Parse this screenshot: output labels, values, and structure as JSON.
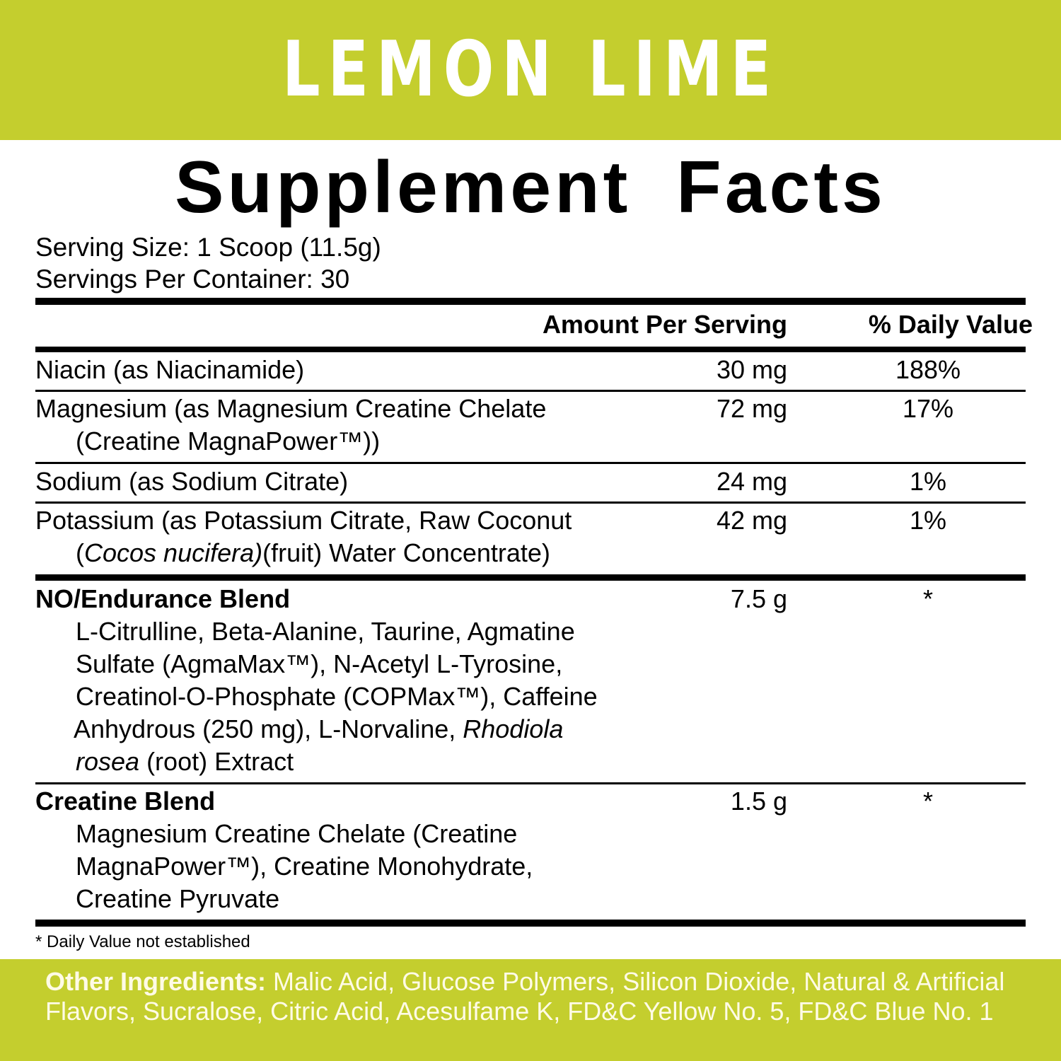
{
  "colors": {
    "brand_green": "#c4ce2e",
    "text": "#000000",
    "band_text": "#fffbe6"
  },
  "flavor": "LEMON LIME",
  "title": "Supplement Facts",
  "serving_size": "Serving Size: 1 Scoop (11.5g)",
  "servings_per_container": "Servings Per Container: 30",
  "columns": {
    "amount": "Amount Per Serving",
    "dv": "% Daily Value"
  },
  "rows": [
    {
      "name": "Niacin (as Niacinamide)",
      "amount": "30 mg",
      "dv": "188%"
    },
    {
      "name": "Magnesium (as Magnesium Creatine Chelate",
      "name2": "(Creatine MagnaPower™))",
      "amount": "72 mg",
      "dv": "17%"
    },
    {
      "name": "Sodium (as Sodium Citrate)",
      "amount": "24 mg",
      "dv": "1%"
    },
    {
      "name": "Potassium (as Potassium Citrate, Raw Coconut",
      "name2_a": "(",
      "name2_i": "Cocos nucifera)",
      "name2_b": "(fruit) Water Concentrate)",
      "amount": "42 mg",
      "dv": "1%"
    }
  ],
  "blends": [
    {
      "name": "NO/Endurance Blend",
      "amount": "7.5 g",
      "dv": "*",
      "lines": [
        "L-Citrulline, Beta-Alanine, Taurine, Agmatine",
        "Sulfate (AgmaMax™), N-Acetyl L-Tyrosine,",
        "Creatinol-O-Phosphate (COPMax™), Caffeine"
      ],
      "line4_a": "Anhydrous (250 mg), L-Norvaline, ",
      "line4_i": "Rhodiola",
      "line5_i": "rosea",
      "line5_b": " (root) Extract"
    },
    {
      "name": "Creatine Blend",
      "amount": "1.5 g",
      "dv": "*",
      "lines": [
        "Magnesium Creatine Chelate (Creatine",
        "MagnaPower™), Creatine Monohydrate,",
        "Creatine Pyruvate"
      ]
    }
  ],
  "footnote": "* Daily Value not established",
  "other_ingredients": {
    "label": "Other Ingredients:",
    "text": " Malic Acid, Glucose Polymers, Silicon Dioxide, Natural & Artificial Flavors, Sucralose, Citric Acid, Acesulfame K, FD&C Yellow No. 5, FD&C Blue No. 1"
  }
}
